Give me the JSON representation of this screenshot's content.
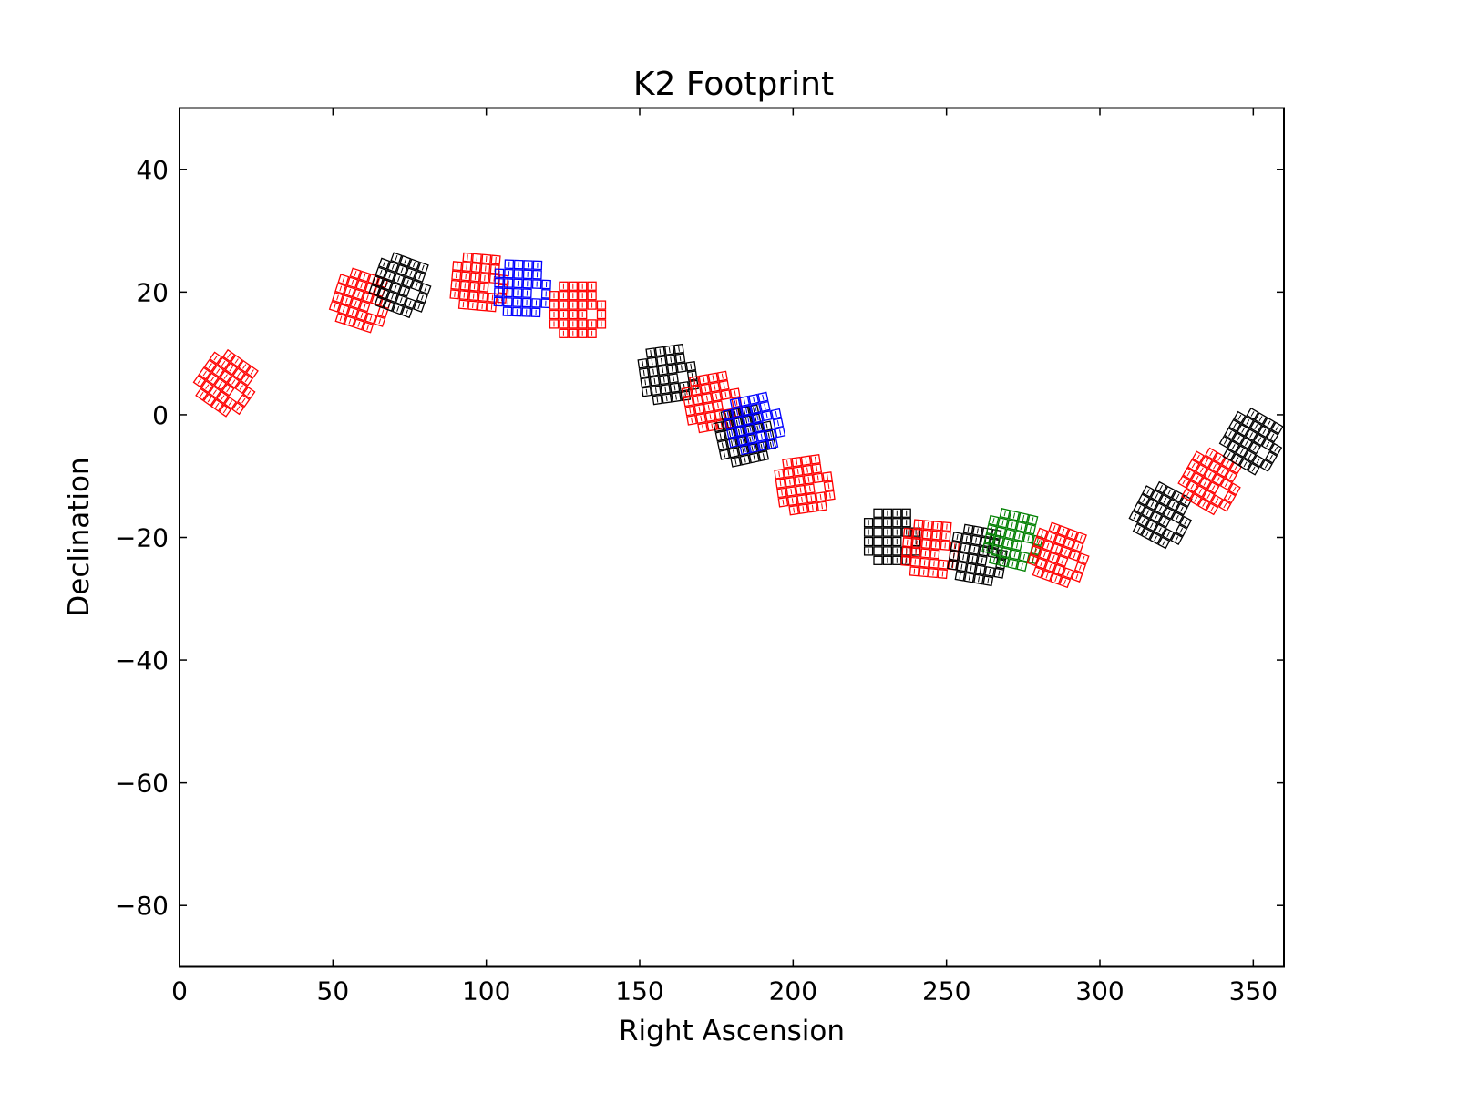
{
  "chart_data": {
    "type": "scatter",
    "title": "K2 Footprint",
    "xlabel": "Right Ascension",
    "ylabel": "Declination",
    "xlim": [
      0,
      360
    ],
    "ylim": [
      -90,
      50
    ],
    "x_ticks": [
      {
        "value": 0,
        "label": "0"
      },
      {
        "value": 50,
        "label": "50"
      },
      {
        "value": 100,
        "label": "100"
      },
      {
        "value": 150,
        "label": "150"
      },
      {
        "value": 200,
        "label": "200"
      },
      {
        "value": 250,
        "label": "250"
      },
      {
        "value": 300,
        "label": "300"
      },
      {
        "value": 350,
        "label": "350"
      }
    ],
    "y_ticks": [
      {
        "value": 40,
        "label": "40"
      },
      {
        "value": 20,
        "label": "20"
      },
      {
        "value": 0,
        "label": "0"
      },
      {
        "value": -20,
        "label": "−20"
      },
      {
        "value": -40,
        "label": "−40"
      },
      {
        "value": -60,
        "label": "−60"
      },
      {
        "value": -80,
        "label": "−80"
      }
    ],
    "grid": false,
    "legend": false,
    "series": [
      {
        "color": "#ff0000",
        "ra": 15.5,
        "dec": 5.0,
        "angle": 35,
        "scale": 1.0
      },
      {
        "color": "#ff0000",
        "ra": 59.5,
        "dec": 18.5,
        "angle": 18,
        "scale": 1.0
      },
      {
        "color": "#000000",
        "ra": 72.5,
        "dec": 21.0,
        "angle": 20,
        "scale": 1.0
      },
      {
        "color": "#ff0000",
        "ra": 98.0,
        "dec": 21.5,
        "angle": 5,
        "scale": 1.0
      },
      {
        "color": "#0000ff",
        "ra": 112.0,
        "dec": 20.5,
        "angle": 2,
        "scale": 1.0
      },
      {
        "color": "#ff0000",
        "ra": 130.0,
        "dec": 17.0,
        "angle": 0,
        "scale": 1.0
      },
      {
        "color": "#000000",
        "ra": 159.5,
        "dec": 6.5,
        "angle": -8,
        "scale": 1.0
      },
      {
        "color": "#ff0000",
        "ra": 174.0,
        "dec": 2.0,
        "angle": -10,
        "scale": 1.0
      },
      {
        "color": "#000000",
        "ra": 184.5,
        "dec": -3.5,
        "angle": -12,
        "scale": 1.0
      },
      {
        "color": "#0000ff",
        "ra": 187.5,
        "dec": -1.5,
        "angle": -12,
        "scale": 1.0
      },
      {
        "color": "#ff0000",
        "ra": 204.0,
        "dec": -11.5,
        "angle": -8,
        "scale": 1.0
      },
      {
        "color": "#000000",
        "ra": 232.5,
        "dec": -20.0,
        "angle": 0,
        "scale": 1.0
      },
      {
        "color": "#ff0000",
        "ra": 245.0,
        "dec": -22.0,
        "angle": 5,
        "scale": 1.0
      },
      {
        "color": "#000000",
        "ra": 260.5,
        "dec": -23.0,
        "angle": 10,
        "scale": 1.0
      },
      {
        "color": "#008000",
        "ra": 272.0,
        "dec": -20.5,
        "angle": 13,
        "scale": 1.0
      },
      {
        "color": "#ff0000",
        "ra": 287.0,
        "dec": -23.0,
        "angle": 20,
        "scale": 1.0
      },
      {
        "color": "#000000",
        "ra": 320.5,
        "dec": -16.5,
        "angle": 28,
        "scale": 1.0
      },
      {
        "color": "#ff0000",
        "ra": 336.5,
        "dec": -11.0,
        "angle": 30,
        "scale": 1.0
      },
      {
        "color": "#000000",
        "ra": 350.0,
        "dec": -4.5,
        "angle": 30,
        "scale": 1.0
      }
    ]
  }
}
